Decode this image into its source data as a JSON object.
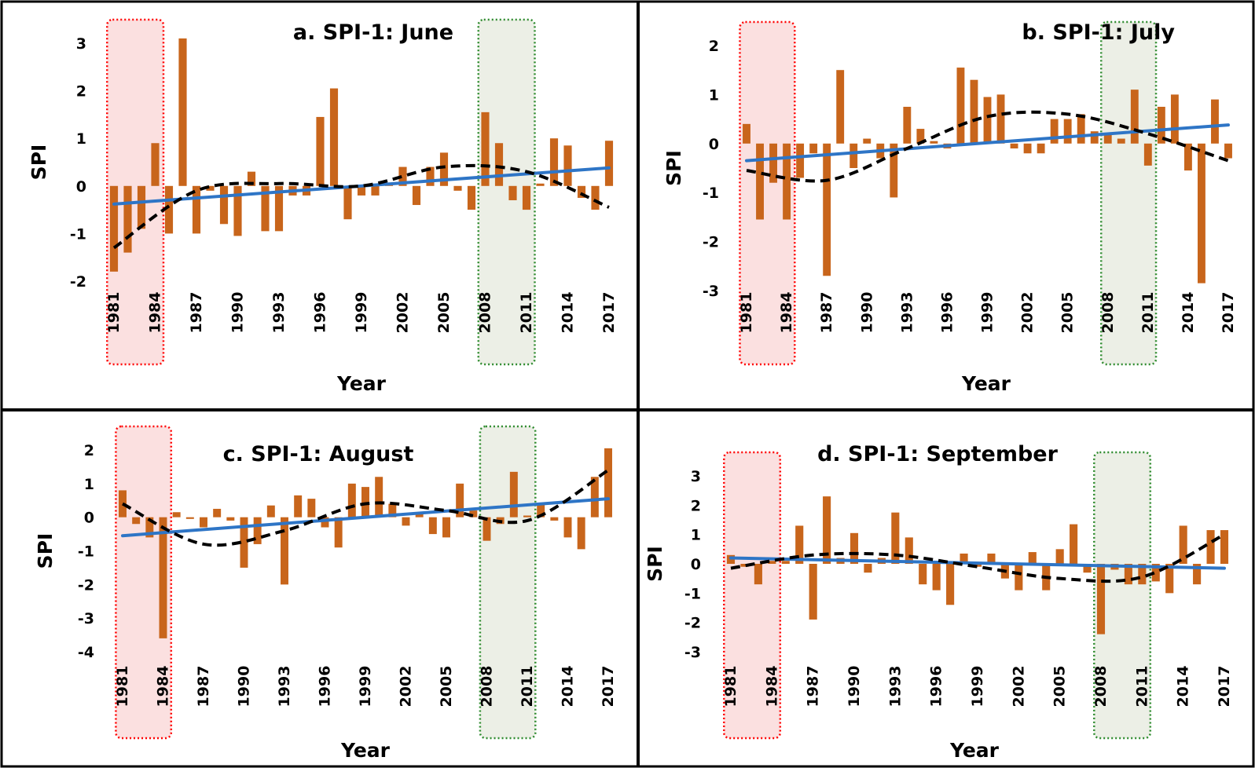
{
  "figure": {
    "colors": {
      "bars": "#c8651b",
      "linear_trend": "#2e75c6",
      "polynomial_trend": "#000000",
      "drought_box_fill": "#fbe0e0",
      "drought_box_border": "#ff0000",
      "wet_box_fill": "#ecefe6",
      "wet_box_border": "#2e8b2e"
    }
  },
  "chart_data": [
    {
      "id": "a",
      "type": "bar",
      "title": "a. SPI-1: June",
      "xlabel": "Year",
      "ylabel": "SPI",
      "ylim": [
        -2,
        3
      ],
      "yticks": [
        "3",
        "2",
        "1",
        "0",
        "-1",
        "-2"
      ],
      "xticks": [
        "1981",
        "1984",
        "1987",
        "1990",
        "1993",
        "1996",
        "1999",
        "2002",
        "2005",
        "2008",
        "2011",
        "2014",
        "2017"
      ],
      "years": [
        1981,
        1982,
        1983,
        1984,
        1985,
        1986,
        1987,
        1988,
        1989,
        1990,
        1991,
        1992,
        1993,
        1994,
        1995,
        1996,
        1997,
        1998,
        1999,
        2000,
        2001,
        2002,
        2003,
        2004,
        2005,
        2006,
        2007,
        2008,
        2009,
        2010,
        2011,
        2012,
        2013,
        2014,
        2015,
        2016,
        2017
      ],
      "values": [
        -1.8,
        -1.4,
        -0.9,
        0.9,
        -1.0,
        3.1,
        -1.0,
        -0.1,
        -0.8,
        -1.05,
        0.3,
        -0.95,
        -0.95,
        -0.2,
        -0.2,
        1.45,
        2.05,
        -0.7,
        -0.2,
        -0.2,
        0.05,
        0.4,
        -0.4,
        0.4,
        0.7,
        -0.1,
        -0.5,
        1.55,
        0.9,
        -0.3,
        -0.5,
        0.05,
        1.0,
        0.85,
        -0.25,
        -0.5,
        0.95
      ],
      "linear_trend": [
        -0.38,
        0.38
      ],
      "polynomial_trend": [
        -1.3,
        -0.1,
        0.05,
        0.0,
        0.4,
        0.3,
        -0.45
      ],
      "drought_period": [
        1981,
        1985
      ],
      "wet_period": [
        2008,
        2012
      ]
    },
    {
      "id": "b",
      "type": "bar",
      "title": "b. SPI-1: July",
      "xlabel": "Year",
      "ylabel": "SPI",
      "ylim": [
        -3,
        2
      ],
      "yticks": [
        "2",
        "1",
        "0",
        "-1",
        "-2",
        "-3"
      ],
      "xticks": [
        "1981",
        "1984",
        "1987",
        "1990",
        "1993",
        "1996",
        "1999",
        "2002",
        "2005",
        "2008",
        "2011",
        "2014",
        "2017"
      ],
      "years": [
        1981,
        1982,
        1983,
        1984,
        1985,
        1986,
        1987,
        1988,
        1989,
        1990,
        1991,
        1992,
        1993,
        1994,
        1995,
        1996,
        1997,
        1998,
        1999,
        2000,
        2001,
        2002,
        2003,
        2004,
        2005,
        2006,
        2007,
        2008,
        2009,
        2010,
        2011,
        2012,
        2013,
        2014,
        2015,
        2016,
        2017
      ],
      "values": [
        0.4,
        -1.55,
        -0.8,
        -1.55,
        -0.7,
        -0.2,
        -2.7,
        1.5,
        -0.5,
        0.1,
        -0.3,
        -1.1,
        0.75,
        0.3,
        0.05,
        -0.1,
        1.55,
        1.3,
        0.95,
        1.0,
        -0.1,
        -0.2,
        -0.2,
        0.5,
        0.5,
        0.6,
        0.25,
        0.2,
        0.1,
        1.1,
        -0.45,
        0.75,
        1.0,
        -0.55,
        -2.85,
        0.9,
        -0.3
      ],
      "linear_trend": [
        -0.35,
        0.38
      ],
      "polynomial_trend": [
        -0.55,
        -0.75,
        -0.1,
        0.55,
        0.6,
        0.2,
        -0.35
      ],
      "drought_period": [
        1981,
        1985
      ],
      "wet_period": [
        2008,
        2012
      ]
    },
    {
      "id": "c",
      "type": "bar",
      "title": "c. SPI-1: August",
      "xlabel": "Year",
      "ylabel": "SPI",
      "ylim": [
        -4,
        2
      ],
      "yticks": [
        "2",
        "1",
        "0",
        "-1",
        "-2",
        "-3",
        "-4"
      ],
      "xticks": [
        "1981",
        "1984",
        "1987",
        "1990",
        "1993",
        "1996",
        "1999",
        "2002",
        "2005",
        "2008",
        "2011",
        "2014",
        "2017"
      ],
      "years": [
        1981,
        1982,
        1983,
        1984,
        1985,
        1986,
        1987,
        1988,
        1989,
        1990,
        1991,
        1992,
        1993,
        1994,
        1995,
        1996,
        1997,
        1998,
        1999,
        2000,
        2001,
        2002,
        2003,
        2004,
        2005,
        2006,
        2007,
        2008,
        2009,
        2010,
        2011,
        2012,
        2013,
        2014,
        2015,
        2016,
        2017
      ],
      "values": [
        0.8,
        -0.2,
        -0.6,
        -3.6,
        0.15,
        -0.05,
        -0.3,
        0.25,
        -0.1,
        -1.5,
        -0.8,
        0.35,
        -2.0,
        0.65,
        0.55,
        -0.3,
        -0.9,
        1.0,
        0.9,
        1.2,
        0.4,
        -0.25,
        0.1,
        -0.5,
        -0.6,
        1.0,
        0.2,
        -0.7,
        -0.2,
        1.35,
        0.05,
        0.4,
        -0.1,
        -0.6,
        -0.95,
        1.2,
        2.05
      ],
      "linear_trend": [
        -0.55,
        0.55
      ],
      "polynomial_trend": [
        0.4,
        -0.8,
        -0.4,
        0.4,
        0.2,
        -0.1,
        1.4
      ],
      "drought_period": [
        1981,
        1985
      ],
      "wet_period": [
        2008,
        2012
      ]
    },
    {
      "id": "d",
      "type": "bar",
      "title": "d. SPI-1: September",
      "xlabel": "Year",
      "ylabel": "SPI",
      "ylim": [
        -3,
        3
      ],
      "yticks": [
        "3",
        "2",
        "1",
        "0",
        "-1",
        "-2",
        "-3"
      ],
      "xticks": [
        "1981",
        "1984",
        "1987",
        "1990",
        "1993",
        "1996",
        "1999",
        "2002",
        "2005",
        "2008",
        "2011",
        "2014",
        "2017"
      ],
      "years": [
        1981,
        1982,
        1983,
        1984,
        1985,
        1986,
        1987,
        1988,
        1989,
        1990,
        1991,
        1992,
        1993,
        1994,
        1995,
        1996,
        1997,
        1998,
        1999,
        2000,
        2001,
        2002,
        2003,
        2004,
        2005,
        2006,
        2007,
        2008,
        2009,
        2010,
        2011,
        2012,
        2013,
        2014,
        2015,
        2016,
        2017
      ],
      "values": [
        0.3,
        -0.1,
        -0.7,
        0.1,
        0.1,
        1.3,
        -1.9,
        2.3,
        0.2,
        1.05,
        -0.3,
        0.2,
        1.75,
        0.9,
        -0.7,
        -0.9,
        -1.4,
        0.35,
        -0.1,
        0.35,
        -0.5,
        -0.9,
        0.4,
        -0.9,
        0.5,
        1.35,
        -0.3,
        -2.4,
        -0.2,
        -0.7,
        -0.7,
        -0.6,
        -1.0,
        1.3,
        -0.7,
        1.15,
        1.15
      ],
      "linear_trend": [
        0.2,
        -0.15
      ],
      "polynomial_trend": [
        -0.15,
        0.3,
        0.3,
        -0.1,
        -0.5,
        -0.45,
        1.0
      ],
      "drought_period": [
        1981,
        1985
      ],
      "wet_period": [
        2008,
        2012
      ]
    }
  ]
}
